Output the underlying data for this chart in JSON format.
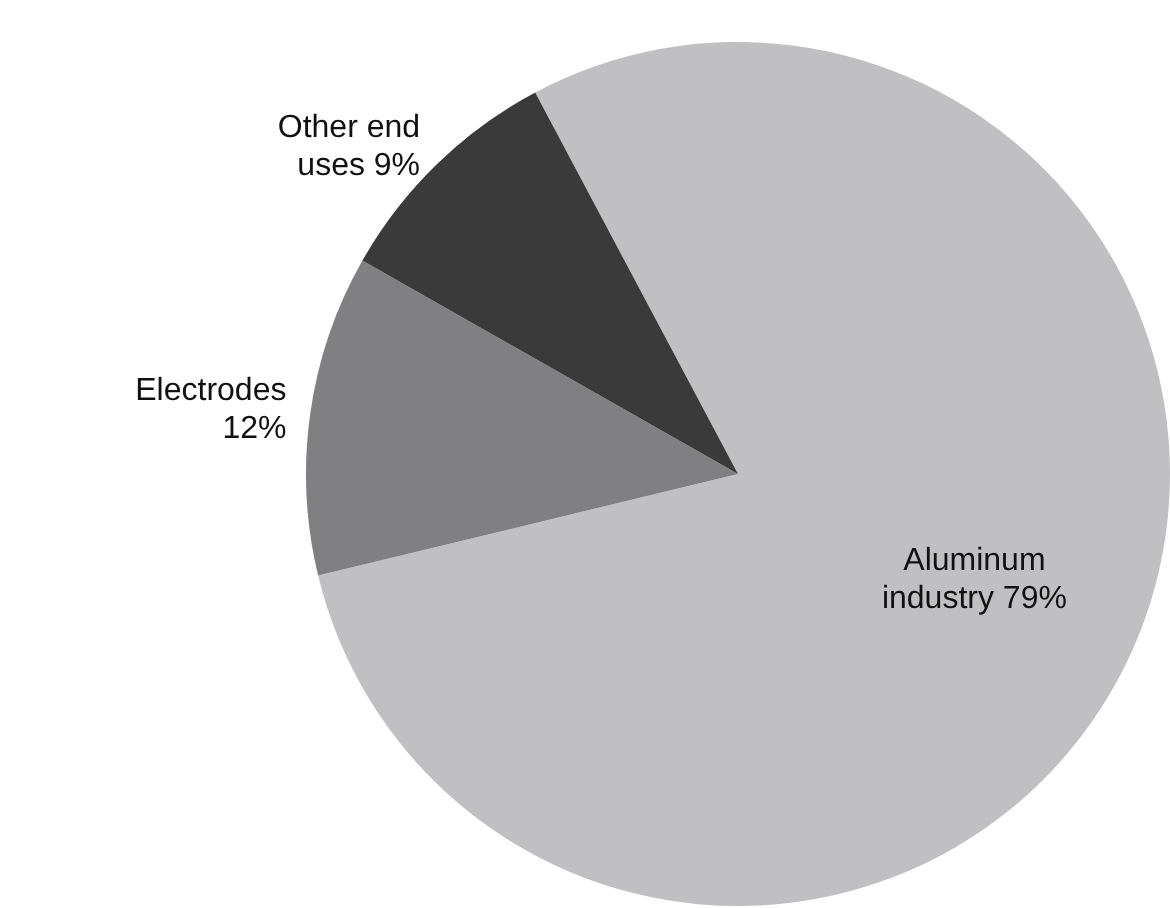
{
  "chart_data": {
    "type": "pie",
    "categories": [
      "Aluminum industry",
      "Electrodes",
      "Other end uses"
    ],
    "values": [
      79,
      12,
      9
    ],
    "colors": [
      "#c0c0c2",
      "#808083",
      "#3a3a3a"
    ],
    "value_labels": [
      "79%",
      "12%",
      "9%"
    ],
    "legend": false
  }
}
